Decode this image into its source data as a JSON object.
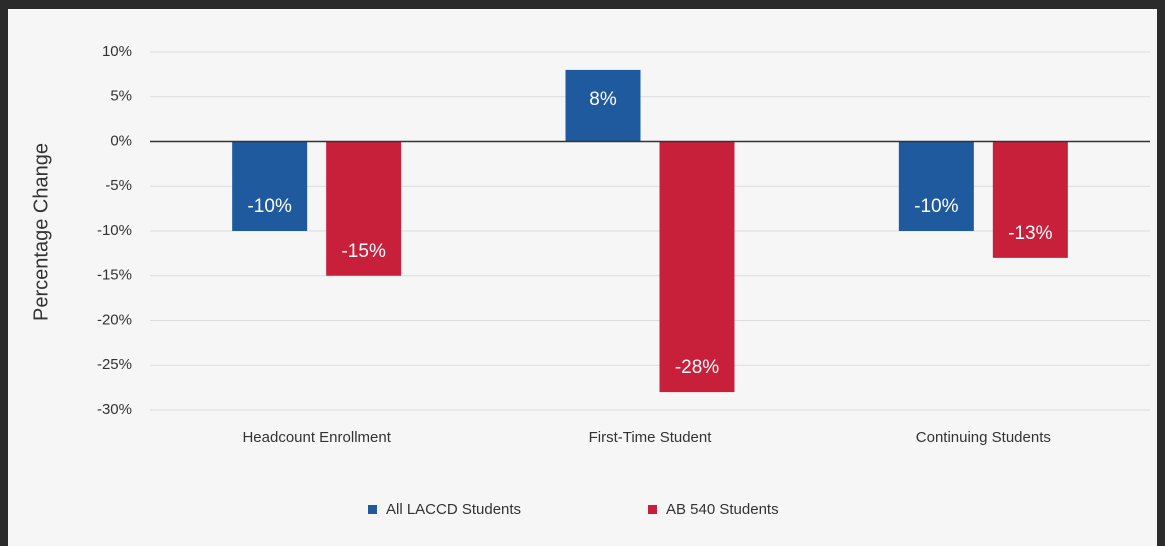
{
  "chart_data": {
    "type": "bar",
    "y_label": "Percentage Change",
    "categories": [
      "Headcount Enrollment",
      "First-Time Student",
      "Continuing Students"
    ],
    "series": [
      {
        "name": "All LACCD Students",
        "color": "#1f5a9e",
        "values": [
          -10,
          8,
          -10
        ],
        "value_labels": [
          "-10%",
          "8%",
          "-10%"
        ]
      },
      {
        "name": "AB 540 Students",
        "color": "#c8203a",
        "values": [
          -15,
          -28,
          -13
        ],
        "value_labels": [
          "-15%",
          "-28%",
          "-13%"
        ]
      }
    ],
    "ylim": [
      -30,
      10
    ],
    "yticks": [
      {
        "value": 10,
        "label": "10%"
      },
      {
        "value": 5,
        "label": "5%"
      },
      {
        "value": 0,
        "label": "0%"
      },
      {
        "value": -5,
        "label": "-5%"
      },
      {
        "value": -10,
        "label": "-10%"
      },
      {
        "value": -15,
        "label": "-15%"
      },
      {
        "value": -20,
        "label": "-20%"
      },
      {
        "value": -25,
        "label": "-25%"
      },
      {
        "value": -30,
        "label": "-30%"
      }
    ],
    "grid": true,
    "legend": "bottom"
  }
}
